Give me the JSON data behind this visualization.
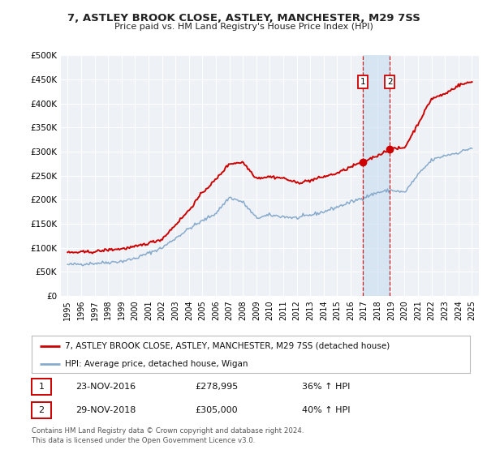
{
  "title": "7, ASTLEY BROOK CLOSE, ASTLEY, MANCHESTER, M29 7SS",
  "subtitle": "Price paid vs. HM Land Registry's House Price Index (HPI)",
  "legend_line1": "7, ASTLEY BROOK CLOSE, ASTLEY, MANCHESTER, M29 7SS (detached house)",
  "legend_line2": "HPI: Average price, detached house, Wigan",
  "footnote1": "Contains HM Land Registry data © Crown copyright and database right 2024.",
  "footnote2": "This data is licensed under the Open Government Licence v3.0.",
  "sale1_date": "23-NOV-2016",
  "sale1_price": "£278,995",
  "sale1_hpi": "36% ↑ HPI",
  "sale2_date": "29-NOV-2018",
  "sale2_price": "£305,000",
  "sale2_hpi": "40% ↑ HPI",
  "red_color": "#cc0000",
  "blue_color": "#88aacc",
  "bg_color": "#eef2f6",
  "grid_color": "#ffffff",
  "ylim": [
    0,
    500000
  ],
  "yticks": [
    0,
    50000,
    100000,
    150000,
    200000,
    250000,
    300000,
    350000,
    400000,
    450000,
    500000
  ],
  "ytick_labels": [
    "£0",
    "£50K",
    "£100K",
    "£150K",
    "£200K",
    "£250K",
    "£300K",
    "£350K",
    "£400K",
    "£450K",
    "£500K"
  ],
  "sale1_x": 2016.9,
  "sale1_y": 278995,
  "sale2_x": 2018.9,
  "sale2_y": 305000,
  "shade_x1": 2016.9,
  "shade_x2": 2018.9,
  "xlim_left": 1994.5,
  "xlim_right": 2025.5
}
